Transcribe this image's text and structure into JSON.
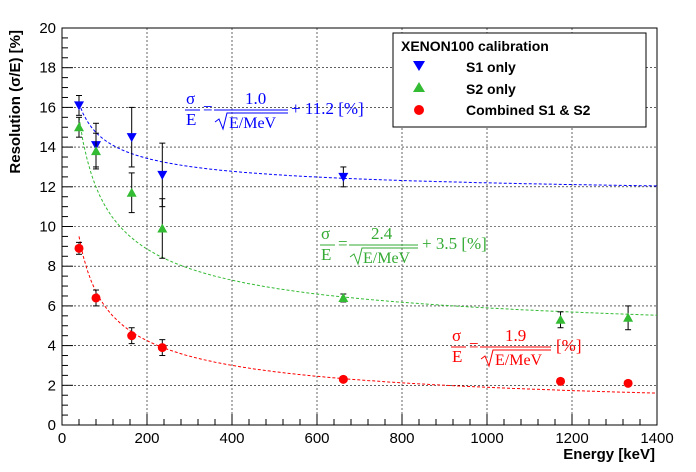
{
  "chart_data": {
    "type": "scatter",
    "xlabel": "Energy [keV]",
    "ylabel": "Resolution (σ/E) [%]",
    "xlim": [
      0,
      1400
    ],
    "ylim": [
      0,
      20
    ],
    "x_ticks": [
      "0",
      "200",
      "400",
      "600",
      "800",
      "1000",
      "1200",
      "1400"
    ],
    "y_ticks": [
      "0",
      "2",
      "4",
      "6",
      "8",
      "10",
      "12",
      "14",
      "16",
      "18",
      "20"
    ],
    "grid": true,
    "legend": {
      "title": "XENON100 calibration",
      "placement": "top-right"
    },
    "series": [
      {
        "name": "S1 only",
        "marker": "triangle-down",
        "color": "#0000ff",
        "points": [
          {
            "x": 40,
            "y": 16.1,
            "err": 0.5
          },
          {
            "x": 80,
            "y": 14.1,
            "err": 1.1
          },
          {
            "x": 164,
            "y": 14.5,
            "err": 1.5
          },
          {
            "x": 236,
            "y": 12.6,
            "err": 1.6
          },
          {
            "x": 662,
            "y": 12.5,
            "err": 0.5
          }
        ],
        "fit": {
          "a": 1.0,
          "b": 11.2,
          "color": "#0000ff",
          "x_range": [
            40,
            1400
          ]
        },
        "formula": {
          "lhs_num": "σ",
          "lhs_den": "E",
          "num": "1.0",
          "den": "E/MeV",
          "tail": "+ 11.2 [%]"
        }
      },
      {
        "name": "S2 only",
        "marker": "triangle-up",
        "color": "#33bb33",
        "points": [
          {
            "x": 40,
            "y": 15.0,
            "err": 0.5
          },
          {
            "x": 80,
            "y": 13.8,
            "err": 0.9
          },
          {
            "x": 164,
            "y": 11.7,
            "err": 1.0
          },
          {
            "x": 236,
            "y": 9.9,
            "err": 1.5
          },
          {
            "x": 662,
            "y": 6.4,
            "err": 0.2
          },
          {
            "x": 1173,
            "y": 5.3,
            "err": 0.4
          },
          {
            "x": 1332,
            "y": 5.4,
            "err": 0.6
          }
        ],
        "fit": {
          "a": 2.4,
          "b": 3.5,
          "color": "#33bb33",
          "x_range": [
            40,
            1400
          ]
        },
        "formula": {
          "lhs_num": "σ",
          "lhs_den": "E",
          "num": "2.4",
          "den": "E/MeV",
          "tail": "+ 3.5 [%]"
        }
      },
      {
        "name": "Combined S1 & S2",
        "marker": "circle",
        "color": "#ff0000",
        "points": [
          {
            "x": 40,
            "y": 8.9,
            "err": 0.3
          },
          {
            "x": 80,
            "y": 6.4,
            "err": 0.4
          },
          {
            "x": 164,
            "y": 4.5,
            "err": 0.4
          },
          {
            "x": 236,
            "y": 3.9,
            "err": 0.4
          },
          {
            "x": 662,
            "y": 2.3,
            "err": 0.1
          },
          {
            "x": 1173,
            "y": 2.2,
            "err": 0.1
          },
          {
            "x": 1332,
            "y": 2.1,
            "err": 0.1
          }
        ],
        "fit": {
          "a": 1.9,
          "b": 0.0,
          "color": "#ff0000",
          "x_range": [
            40,
            1400
          ]
        },
        "formula": {
          "lhs_num": "σ",
          "lhs_den": "E",
          "num": "1.9",
          "den": "E/MeV",
          "tail": "[%]"
        }
      }
    ]
  }
}
